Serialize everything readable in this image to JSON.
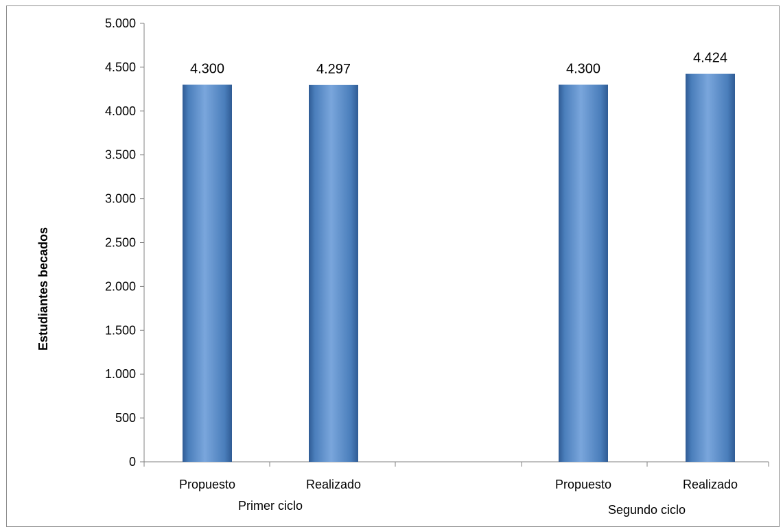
{
  "chart_data": {
    "type": "bar",
    "title": "",
    "ylabel": "Estudiantes becados",
    "xlabel": "",
    "ylim": [
      0,
      5000
    ],
    "yticks": [
      0,
      500,
      1000,
      1500,
      2000,
      2500,
      3000,
      3500,
      4000,
      4500,
      5000
    ],
    "ytick_labels": [
      "0",
      "500",
      "1.000",
      "1.500",
      "2.000",
      "2.500",
      "3.000",
      "3.500",
      "4.000",
      "4.500",
      "5.000"
    ],
    "groups": [
      {
        "label": "Primer ciclo",
        "categories": [
          "Propuesto",
          "Realizado"
        ],
        "values": [
          4300,
          4297
        ],
        "value_labels": [
          "4.300",
          "4.297"
        ]
      },
      {
        "label": "Segundo ciclo",
        "categories": [
          "Propuesto",
          "Realizado"
        ],
        "values": [
          4300,
          4424
        ],
        "value_labels": [
          "4.300",
          "4.424"
        ]
      }
    ],
    "grid": false,
    "legend": "none",
    "colors": {
      "bar": "#4a7ebb",
      "bar_light": "#7aa6dc",
      "bar_dark": "#2f5b94",
      "axis": "#808080"
    }
  }
}
